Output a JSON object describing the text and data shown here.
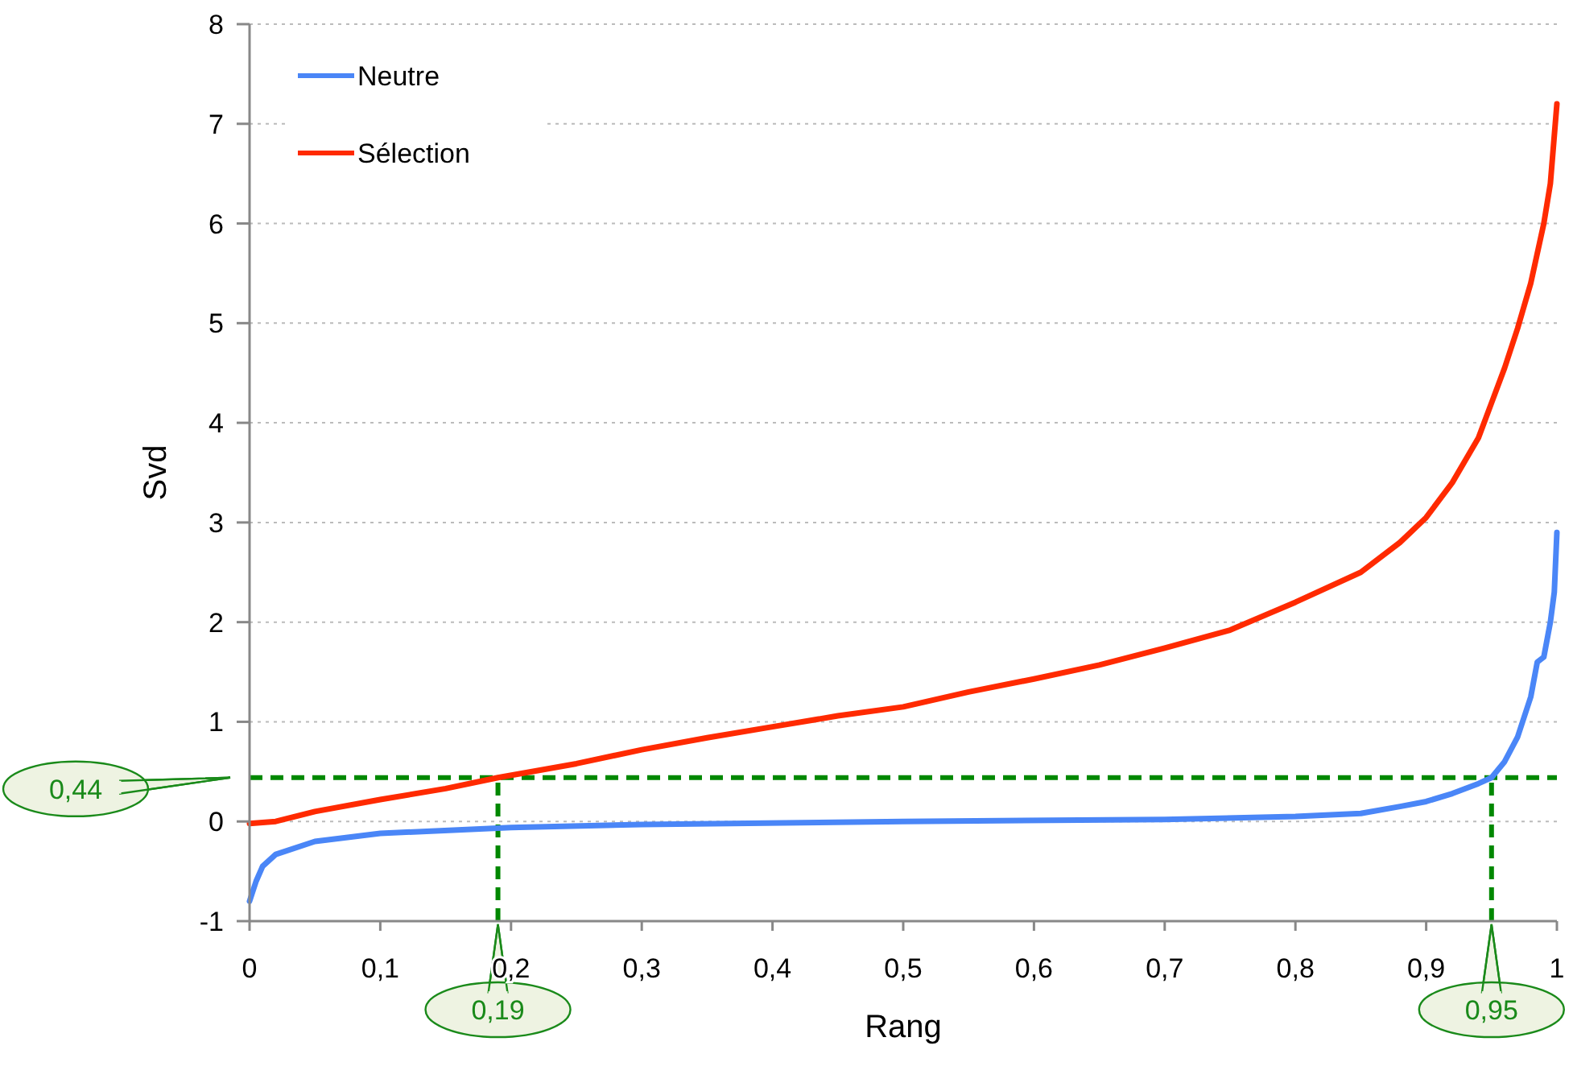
{
  "chart_data": {
    "type": "line",
    "xlabel": "Rang",
    "ylabel": "Svd",
    "xlim": [
      0,
      1
    ],
    "ylim": [
      -1,
      8
    ],
    "xticks": [
      0,
      {
        "value": 0.1,
        "label": "0,1"
      },
      {
        "value": 0.2,
        "label": "0,2"
      },
      {
        "value": 0.3,
        "label": "0,3"
      },
      {
        "value": 0.4,
        "label": "0,4"
      },
      {
        "value": 0.5,
        "label": "0,5"
      },
      {
        "value": 0.6,
        "label": "0,6"
      },
      {
        "value": 0.7,
        "label": "0,7"
      },
      {
        "value": 0.8,
        "label": "0,8"
      },
      {
        "value": 0.9,
        "label": "0,9"
      },
      1
    ],
    "yticks": [
      -1,
      0,
      1,
      2,
      3,
      4,
      5,
      6,
      7,
      8
    ],
    "grid": "y",
    "legend": "top left",
    "marker": "none",
    "line_style": "solid",
    "series": [
      {
        "name": "Neutre",
        "color": "#4a86f7",
        "x": [
          0,
          0.005,
          0.01,
          0.02,
          0.05,
          0.1,
          0.2,
          0.3,
          0.5,
          0.7,
          0.8,
          0.85,
          0.88,
          0.9,
          0.92,
          0.94,
          0.95,
          0.96,
          0.97,
          0.98,
          0.985,
          0.99,
          0.995,
          0.998,
          1
        ],
        "values": [
          -0.8,
          -0.6,
          -0.45,
          -0.33,
          -0.2,
          -0.12,
          -0.06,
          -0.03,
          0,
          0.02,
          0.05,
          0.08,
          0.15,
          0.2,
          0.28,
          0.38,
          0.44,
          0.6,
          0.85,
          1.25,
          1.6,
          1.65,
          2,
          2.3,
          2.9
        ]
      },
      {
        "name": "Sélection",
        "color": "#ff2a00",
        "x": [
          0,
          0.02,
          0.05,
          0.1,
          0.15,
          0.19,
          0.25,
          0.3,
          0.35,
          0.4,
          0.45,
          0.5,
          0.55,
          0.6,
          0.65,
          0.7,
          0.75,
          0.8,
          0.85,
          0.88,
          0.9,
          0.92,
          0.94,
          0.95,
          0.96,
          0.97,
          0.98,
          0.99,
          0.995,
          1
        ],
        "values": [
          -0.02,
          0,
          0.1,
          0.22,
          0.33,
          0.44,
          0.58,
          0.72,
          0.84,
          0.95,
          1.06,
          1.15,
          1.3,
          1.43,
          1.57,
          1.74,
          1.92,
          2.2,
          2.5,
          2.8,
          3.05,
          3.4,
          3.85,
          4.2,
          4.55,
          4.95,
          5.4,
          6,
          6.4,
          7.2
        ]
      }
    ],
    "ref_lines": [
      {
        "axis": "y",
        "value": 0.44,
        "label": "0,44",
        "color": "#008800",
        "line_style": "dashed"
      },
      {
        "axis": "x",
        "value": 0.19,
        "label": "0,19",
        "color": "#008800",
        "line_style": "dashed"
      },
      {
        "axis": "x",
        "value": 0.95,
        "label": "0,95",
        "color": "#008800",
        "line_style": "dashed"
      }
    ]
  }
}
